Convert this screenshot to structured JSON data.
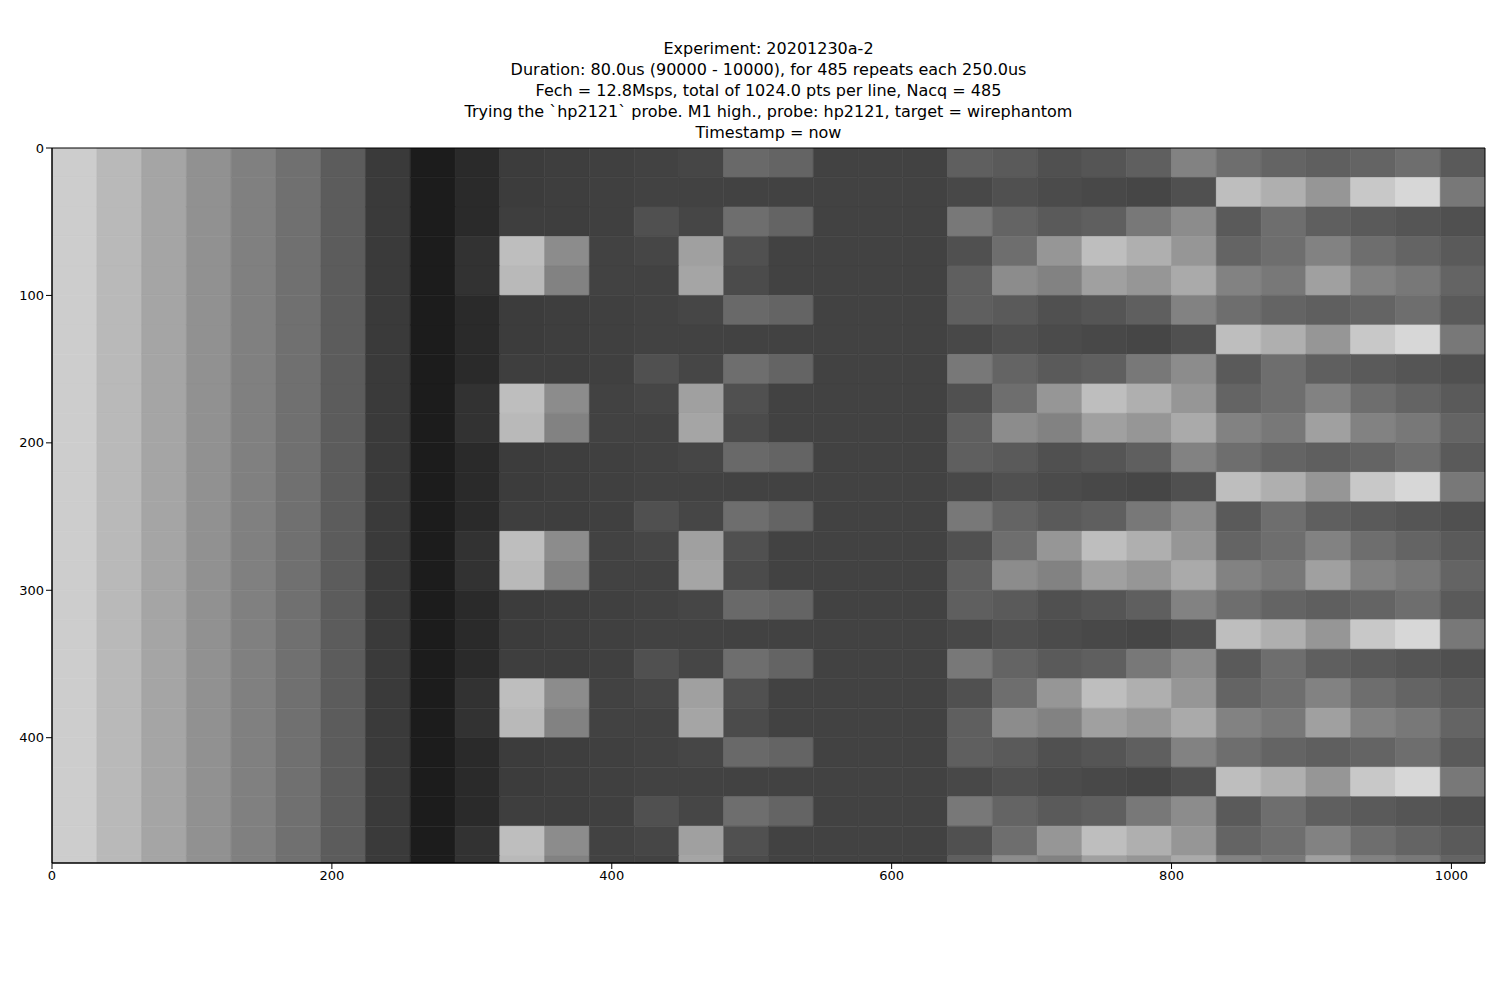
{
  "chart_data": {
    "type": "heatmap",
    "title": [
      "Experiment: 20201230a-2",
      "Duration: 80.0us (90000 - 10000), for 485 repeats each 250.0us",
      "Fech = 12.8Msps, total of 1024.0 pts per line, Nacq = 485",
      "Trying the `hp2121` probe. M1 high., probe: hp2121, target = wirephantom",
      "Timestamp = now"
    ],
    "xlim": [
      0,
      1024
    ],
    "xticks": [
      0,
      200,
      400,
      600,
      800,
      1000
    ],
    "ylim": [
      0,
      485
    ],
    "yticks": [
      0,
      100,
      200,
      300,
      400
    ],
    "x": [
      0,
      32,
      64,
      96,
      128,
      160,
      192,
      224,
      256,
      288,
      320,
      352,
      384,
      416,
      448,
      480,
      512,
      544,
      576,
      608,
      640,
      672,
      704,
      736,
      768,
      800,
      832,
      864,
      896,
      928,
      960,
      992,
      1024
    ],
    "y": [
      0,
      20,
      40,
      60,
      80,
      100,
      120,
      140,
      160,
      180,
      200,
      220,
      240,
      260,
      280,
      300,
      320,
      340,
      360,
      380,
      400,
      420,
      440,
      460,
      480,
      485
    ],
    "cells": [
      [
        205,
        185,
        165,
        145,
        128,
        112,
        92,
        58,
        28,
        42,
        60,
        62,
        64,
        66,
        70,
        105,
        100,
        66,
        66,
        66,
        95,
        90,
        80,
        85,
        95,
        130,
        110,
        100,
        95,
        100,
        110,
        90
      ],
      [
        205,
        185,
        165,
        145,
        128,
        112,
        92,
        58,
        28,
        42,
        60,
        62,
        64,
        66,
        66,
        66,
        66,
        66,
        66,
        66,
        72,
        80,
        75,
        72,
        70,
        80,
        190,
        175,
        150,
        200,
        215,
        120
      ],
      [
        205,
        185,
        165,
        145,
        128,
        112,
        92,
        58,
        28,
        42,
        62,
        62,
        64,
        80,
        70,
        110,
        100,
        66,
        66,
        66,
        120,
        100,
        90,
        95,
        120,
        140,
        90,
        110,
        95,
        90,
        85,
        80
      ],
      [
        205,
        185,
        165,
        145,
        128,
        112,
        92,
        58,
        28,
        50,
        190,
        140,
        66,
        70,
        160,
        80,
        66,
        66,
        66,
        66,
        80,
        110,
        150,
        190,
        175,
        150,
        100,
        110,
        130,
        110,
        100,
        90
      ],
      [
        205,
        185,
        165,
        145,
        128,
        112,
        92,
        58,
        28,
        50,
        185,
        130,
        66,
        66,
        165,
        75,
        66,
        66,
        66,
        66,
        95,
        140,
        130,
        160,
        150,
        170,
        130,
        120,
        160,
        130,
        120,
        100
      ],
      [
        205,
        185,
        165,
        145,
        128,
        112,
        92,
        58,
        28,
        42,
        60,
        62,
        64,
        66,
        70,
        105,
        100,
        66,
        66,
        66,
        95,
        90,
        80,
        85,
        95,
        130,
        110,
        100,
        95,
        100,
        110,
        90
      ],
      [
        205,
        185,
        165,
        145,
        128,
        112,
        92,
        58,
        28,
        42,
        60,
        62,
        64,
        66,
        66,
        66,
        66,
        66,
        66,
        66,
        72,
        80,
        75,
        72,
        70,
        80,
        190,
        175,
        150,
        200,
        215,
        120
      ],
      [
        205,
        185,
        165,
        145,
        128,
        112,
        92,
        58,
        28,
        42,
        62,
        62,
        64,
        80,
        70,
        110,
        100,
        66,
        66,
        66,
        120,
        100,
        90,
        95,
        120,
        140,
        90,
        110,
        95,
        90,
        85,
        80
      ],
      [
        205,
        185,
        165,
        145,
        128,
        112,
        92,
        58,
        28,
        50,
        190,
        140,
        66,
        70,
        160,
        80,
        66,
        66,
        66,
        66,
        80,
        110,
        150,
        190,
        175,
        150,
        100,
        110,
        130,
        110,
        100,
        90
      ],
      [
        205,
        185,
        165,
        145,
        128,
        112,
        92,
        58,
        28,
        50,
        185,
        130,
        66,
        66,
        165,
        75,
        66,
        66,
        66,
        66,
        95,
        140,
        130,
        160,
        150,
        170,
        130,
        120,
        160,
        130,
        120,
        100
      ],
      [
        205,
        185,
        165,
        145,
        128,
        112,
        92,
        58,
        28,
        42,
        60,
        62,
        64,
        66,
        70,
        105,
        100,
        66,
        66,
        66,
        95,
        90,
        80,
        85,
        95,
        130,
        110,
        100,
        95,
        100,
        110,
        90
      ],
      [
        205,
        185,
        165,
        145,
        128,
        112,
        92,
        58,
        28,
        42,
        60,
        62,
        64,
        66,
        66,
        66,
        66,
        66,
        66,
        66,
        72,
        80,
        75,
        72,
        70,
        80,
        190,
        175,
        150,
        200,
        215,
        120
      ],
      [
        205,
        185,
        165,
        145,
        128,
        112,
        92,
        58,
        28,
        42,
        62,
        62,
        64,
        80,
        70,
        110,
        100,
        66,
        66,
        66,
        120,
        100,
        90,
        95,
        120,
        140,
        90,
        110,
        95,
        90,
        85,
        80
      ],
      [
        205,
        185,
        165,
        145,
        128,
        112,
        92,
        58,
        28,
        50,
        190,
        140,
        66,
        70,
        160,
        80,
        66,
        66,
        66,
        66,
        80,
        110,
        150,
        190,
        175,
        150,
        100,
        110,
        130,
        110,
        100,
        90
      ],
      [
        205,
        185,
        165,
        145,
        128,
        112,
        92,
        58,
        28,
        50,
        185,
        130,
        66,
        66,
        165,
        75,
        66,
        66,
        66,
        66,
        95,
        140,
        130,
        160,
        150,
        170,
        130,
        120,
        160,
        130,
        120,
        100
      ],
      [
        205,
        185,
        165,
        145,
        128,
        112,
        92,
        58,
        28,
        42,
        60,
        62,
        64,
        66,
        70,
        105,
        100,
        66,
        66,
        66,
        95,
        90,
        80,
        85,
        95,
        130,
        110,
        100,
        95,
        100,
        110,
        90
      ],
      [
        205,
        185,
        165,
        145,
        128,
        112,
        92,
        58,
        28,
        42,
        60,
        62,
        64,
        66,
        66,
        66,
        66,
        66,
        66,
        66,
        72,
        80,
        75,
        72,
        70,
        80,
        190,
        175,
        150,
        200,
        215,
        120
      ],
      [
        205,
        185,
        165,
        145,
        128,
        112,
        92,
        58,
        28,
        42,
        62,
        62,
        64,
        80,
        70,
        110,
        100,
        66,
        66,
        66,
        120,
        100,
        90,
        95,
        120,
        140,
        90,
        110,
        95,
        90,
        85,
        80
      ],
      [
        205,
        185,
        165,
        145,
        128,
        112,
        92,
        58,
        28,
        50,
        190,
        140,
        66,
        70,
        160,
        80,
        66,
        66,
        66,
        66,
        80,
        110,
        150,
        190,
        175,
        150,
        100,
        110,
        130,
        110,
        100,
        90
      ],
      [
        205,
        185,
        165,
        145,
        128,
        112,
        92,
        58,
        28,
        50,
        185,
        130,
        66,
        66,
        165,
        75,
        66,
        66,
        66,
        66,
        95,
        140,
        130,
        160,
        150,
        170,
        130,
        120,
        160,
        130,
        120,
        100
      ],
      [
        205,
        185,
        165,
        145,
        128,
        112,
        92,
        58,
        28,
        42,
        60,
        62,
        64,
        66,
        70,
        105,
        100,
        66,
        66,
        66,
        95,
        90,
        80,
        85,
        95,
        130,
        110,
        100,
        95,
        100,
        110,
        90
      ],
      [
        205,
        185,
        165,
        145,
        128,
        112,
        92,
        58,
        28,
        42,
        60,
        62,
        64,
        66,
        66,
        66,
        66,
        66,
        66,
        66,
        72,
        80,
        75,
        72,
        70,
        80,
        190,
        175,
        150,
        200,
        215,
        120
      ],
      [
        205,
        185,
        165,
        145,
        128,
        112,
        92,
        58,
        28,
        42,
        62,
        62,
        64,
        80,
        70,
        110,
        100,
        66,
        66,
        66,
        120,
        100,
        90,
        95,
        120,
        140,
        90,
        110,
        95,
        90,
        85,
        80
      ],
      [
        205,
        185,
        165,
        145,
        128,
        112,
        92,
        58,
        28,
        50,
        190,
        140,
        66,
        70,
        160,
        80,
        66,
        66,
        66,
        66,
        80,
        110,
        150,
        190,
        175,
        150,
        100,
        110,
        130,
        110,
        100,
        90
      ],
      [
        205,
        185,
        165,
        145,
        128,
        112,
        92,
        58,
        28,
        50,
        185,
        130,
        66,
        66,
        165,
        75,
        66,
        66,
        66,
        66,
        95,
        140,
        130,
        160,
        150,
        170,
        130,
        120,
        160,
        130,
        120,
        100
      ]
    ]
  }
}
